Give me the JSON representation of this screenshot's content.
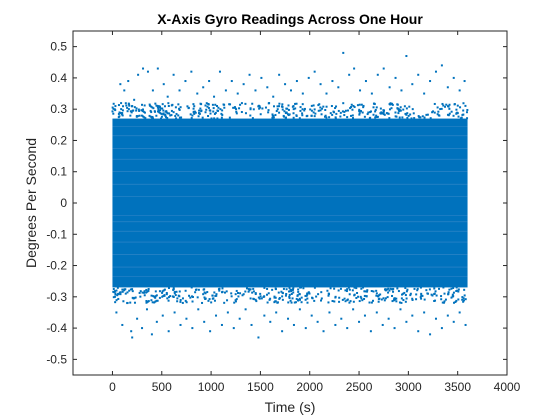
{
  "chart_data": {
    "type": "scatter",
    "title": "X-Axis Gyro Readings Across One Hour",
    "xlabel": "Time (s)",
    "ylabel": "Degrees Per Second",
    "xlim": [
      -400,
      4000
    ],
    "ylim": [
      -0.55,
      0.55
    ],
    "xticks": [
      0,
      500,
      1000,
      1500,
      2000,
      2500,
      3000,
      3500,
      4000
    ],
    "yticks": [
      -0.5,
      -0.4,
      -0.3,
      -0.2,
      -0.1,
      0,
      0.1,
      0.2,
      0.3,
      0.4,
      0.5
    ],
    "xtick_labels": [
      "0",
      "500",
      "1000",
      "1500",
      "2000",
      "2500",
      "3000",
      "3500",
      "4000"
    ],
    "ytick_labels": [
      "-0.5",
      "-0.4",
      "-0.3",
      "-0.2",
      "-0.1",
      "0",
      "0.1",
      "0.2",
      "0.3",
      "0.4",
      "0.5"
    ],
    "series": [
      {
        "color": "#0072BD",
        "x_range": [
          0,
          3600
        ],
        "dense_band": [
          -0.27,
          0.27
        ],
        "outliers": [
          {
            "x": 30,
            "y": 0.31
          },
          {
            "x": 80,
            "y": 0.38
          },
          {
            "x": 120,
            "y": 0.36
          },
          {
            "x": 160,
            "y": 0.39
          },
          {
            "x": 220,
            "y": 0.33
          },
          {
            "x": 260,
            "y": 0.41
          },
          {
            "x": 310,
            "y": 0.43
          },
          {
            "x": 360,
            "y": 0.42
          },
          {
            "x": 410,
            "y": 0.36
          },
          {
            "x": 460,
            "y": 0.43
          },
          {
            "x": 520,
            "y": 0.38
          },
          {
            "x": 560,
            "y": 0.34
          },
          {
            "x": 620,
            "y": 0.41
          },
          {
            "x": 680,
            "y": 0.36
          },
          {
            "x": 740,
            "y": 0.39
          },
          {
            "x": 800,
            "y": 0.42
          },
          {
            "x": 860,
            "y": 0.35
          },
          {
            "x": 920,
            "y": 0.37
          },
          {
            "x": 980,
            "y": 0.39
          },
          {
            "x": 1030,
            "y": 0.34
          },
          {
            "x": 1090,
            "y": 0.42
          },
          {
            "x": 1150,
            "y": 0.36
          },
          {
            "x": 1210,
            "y": 0.39
          },
          {
            "x": 1270,
            "y": 0.35
          },
          {
            "x": 1330,
            "y": 0.38
          },
          {
            "x": 1390,
            "y": 0.41
          },
          {
            "x": 1450,
            "y": 0.36
          },
          {
            "x": 1510,
            "y": 0.4
          },
          {
            "x": 1570,
            "y": 0.37
          },
          {
            "x": 1630,
            "y": 0.34
          },
          {
            "x": 1690,
            "y": 0.41
          },
          {
            "x": 1750,
            "y": 0.38
          },
          {
            "x": 1810,
            "y": 0.36
          },
          {
            "x": 1870,
            "y": 0.39
          },
          {
            "x": 1930,
            "y": 0.35
          },
          {
            "x": 1990,
            "y": 0.4
          },
          {
            "x": 2050,
            "y": 0.42
          },
          {
            "x": 2110,
            "y": 0.38
          },
          {
            "x": 2170,
            "y": 0.35
          },
          {
            "x": 2230,
            "y": 0.39
          },
          {
            "x": 2290,
            "y": 0.37
          },
          {
            "x": 2340,
            "y": 0.48
          },
          {
            "x": 2400,
            "y": 0.41
          },
          {
            "x": 2450,
            "y": 0.43
          },
          {
            "x": 2510,
            "y": 0.36
          },
          {
            "x": 2570,
            "y": 0.39
          },
          {
            "x": 2630,
            "y": 0.35
          },
          {
            "x": 2690,
            "y": 0.41
          },
          {
            "x": 2750,
            "y": 0.43
          },
          {
            "x": 2810,
            "y": 0.37
          },
          {
            "x": 2870,
            "y": 0.4
          },
          {
            "x": 2930,
            "y": 0.36
          },
          {
            "x": 2980,
            "y": 0.47
          },
          {
            "x": 3040,
            "y": 0.38
          },
          {
            "x": 3100,
            "y": 0.41
          },
          {
            "x": 3160,
            "y": 0.35
          },
          {
            "x": 3220,
            "y": 0.39
          },
          {
            "x": 3280,
            "y": 0.42
          },
          {
            "x": 3340,
            "y": 0.44
          },
          {
            "x": 3400,
            "y": 0.37
          },
          {
            "x": 3460,
            "y": 0.4
          },
          {
            "x": 3520,
            "y": 0.36
          },
          {
            "x": 3570,
            "y": 0.39
          },
          {
            "x": 40,
            "y": -0.35
          },
          {
            "x": 100,
            "y": -0.39
          },
          {
            "x": 150,
            "y": -0.32
          },
          {
            "x": 190,
            "y": -0.41
          },
          {
            "x": 200,
            "y": -0.43
          },
          {
            "x": 250,
            "y": -0.37
          },
          {
            "x": 300,
            "y": -0.4
          },
          {
            "x": 350,
            "y": -0.34
          },
          {
            "x": 400,
            "y": -0.42
          },
          {
            "x": 450,
            "y": -0.38
          },
          {
            "x": 510,
            "y": -0.36
          },
          {
            "x": 570,
            "y": -0.41
          },
          {
            "x": 630,
            "y": -0.35
          },
          {
            "x": 690,
            "y": -0.39
          },
          {
            "x": 750,
            "y": -0.37
          },
          {
            "x": 810,
            "y": -0.4
          },
          {
            "x": 870,
            "y": -0.34
          },
          {
            "x": 930,
            "y": -0.38
          },
          {
            "x": 990,
            "y": -0.41
          },
          {
            "x": 1050,
            "y": -0.36
          },
          {
            "x": 1110,
            "y": -0.39
          },
          {
            "x": 1170,
            "y": -0.35
          },
          {
            "x": 1230,
            "y": -0.4
          },
          {
            "x": 1290,
            "y": -0.37
          },
          {
            "x": 1350,
            "y": -0.34
          },
          {
            "x": 1410,
            "y": -0.39
          },
          {
            "x": 1480,
            "y": -0.43
          },
          {
            "x": 1540,
            "y": -0.36
          },
          {
            "x": 1600,
            "y": -0.38
          },
          {
            "x": 1660,
            "y": -0.35
          },
          {
            "x": 1720,
            "y": -0.41
          },
          {
            "x": 1780,
            "y": -0.37
          },
          {
            "x": 1840,
            "y": -0.39
          },
          {
            "x": 1900,
            "y": -0.34
          },
          {
            "x": 1960,
            "y": -0.4
          },
          {
            "x": 2020,
            "y": -0.36
          },
          {
            "x": 2080,
            "y": -0.38
          },
          {
            "x": 2140,
            "y": -0.41
          },
          {
            "x": 2200,
            "y": -0.35
          },
          {
            "x": 2260,
            "y": -0.39
          },
          {
            "x": 2320,
            "y": -0.37
          },
          {
            "x": 2380,
            "y": -0.4
          },
          {
            "x": 2440,
            "y": -0.34
          },
          {
            "x": 2500,
            "y": -0.38
          },
          {
            "x": 2560,
            "y": -0.36
          },
          {
            "x": 2620,
            "y": -0.41
          },
          {
            "x": 2680,
            "y": -0.35
          },
          {
            "x": 2740,
            "y": -0.39
          },
          {
            "x": 2800,
            "y": -0.37
          },
          {
            "x": 2860,
            "y": -0.4
          },
          {
            "x": 2920,
            "y": -0.34
          },
          {
            "x": 2980,
            "y": -0.38
          },
          {
            "x": 3040,
            "y": -0.36
          },
          {
            "x": 3100,
            "y": -0.41
          },
          {
            "x": 3160,
            "y": -0.35
          },
          {
            "x": 3220,
            "y": -0.42
          },
          {
            "x": 3280,
            "y": -0.37
          },
          {
            "x": 3340,
            "y": -0.4
          },
          {
            "x": 3400,
            "y": -0.36
          },
          {
            "x": 3460,
            "y": -0.38
          },
          {
            "x": 3520,
            "y": -0.35
          },
          {
            "x": 3580,
            "y": -0.39
          }
        ]
      }
    ],
    "grid": false,
    "box": true
  }
}
